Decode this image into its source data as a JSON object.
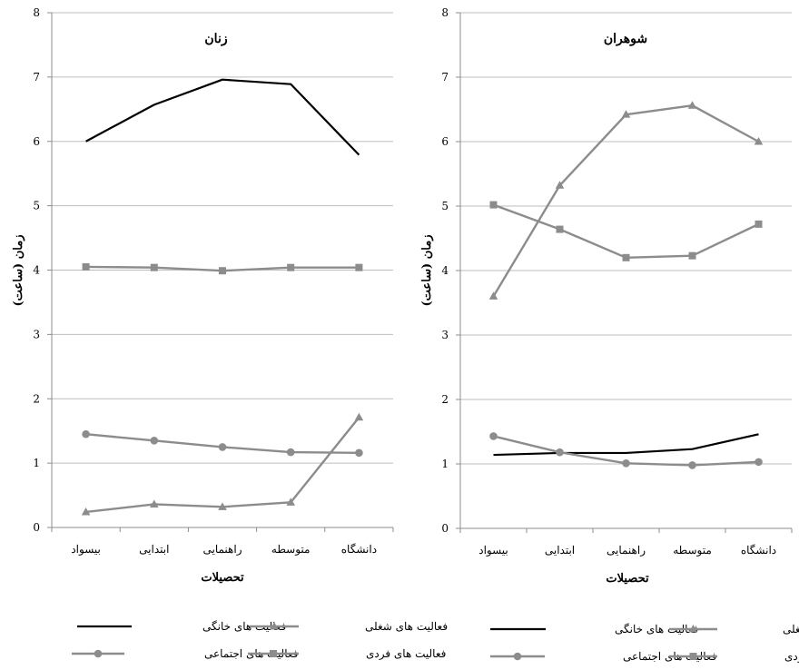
{
  "chart_data": [
    {
      "type": "line",
      "title": "زنان",
      "xlabel": "تحصیلات",
      "ylabel": "زمان (ساعت)",
      "categories": [
        "بیسواد",
        "ابتدایی",
        "راهنمایی",
        "متوسطه",
        "دانشگاه"
      ],
      "ylim": [
        0,
        8
      ],
      "yticks": [
        "0",
        "1",
        "2",
        "3",
        "4",
        "5",
        "6",
        "7",
        "8"
      ],
      "grid": true,
      "legend_position": "bottom",
      "series": [
        {
          "name": "فعالیت های خانگی",
          "values": [
            6.0,
            6.57,
            6.96,
            6.89,
            5.79
          ],
          "color": "#000000",
          "marker": "none"
        },
        {
          "name": "فعالیت های شغلی",
          "values": [
            0.24,
            0.36,
            0.32,
            0.39,
            1.71
          ],
          "color": "#8c8c8c",
          "marker": "triangle"
        },
        {
          "name": "فعالیت های اجتماعی",
          "values": [
            1.45,
            1.35,
            1.25,
            1.17,
            1.16
          ],
          "color": "#8c8c8c",
          "marker": "circle"
        },
        {
          "name": "فعالیت های فردی",
          "values": [
            4.05,
            4.04,
            3.99,
            4.04,
            4.04
          ],
          "color": "#8c8c8c",
          "marker": "square"
        }
      ]
    },
    {
      "type": "line",
      "title": "شوهران",
      "xlabel": "تحصیلات",
      "ylabel": "زمان (ساعت)",
      "categories": [
        "بیسواد",
        "ابتدایی",
        "راهنمایی",
        "متوسطه",
        "دانشگاه"
      ],
      "ylim": [
        0,
        8
      ],
      "yticks": [
        "0",
        "1",
        "2",
        "3",
        "4",
        "5",
        "6",
        "7",
        "8"
      ],
      "grid": true,
      "legend_position": "bottom",
      "series": [
        {
          "name": "فعالیت های خانگی",
          "values": [
            1.14,
            1.17,
            1.17,
            1.23,
            1.46
          ],
          "color": "#000000",
          "marker": "none"
        },
        {
          "name": "فعالیت های شغلی",
          "values": [
            3.6,
            5.32,
            6.42,
            6.56,
            6.0
          ],
          "color": "#8c8c8c",
          "marker": "triangle"
        },
        {
          "name": "فعالیت های اجتماعی",
          "values": [
            1.43,
            1.18,
            1.01,
            0.98,
            1.03
          ],
          "color": "#8c8c8c",
          "marker": "circle"
        },
        {
          "name": "فعالیت های فردی",
          "values": [
            5.02,
            4.64,
            4.2,
            4.23,
            4.72
          ],
          "color": "#8c8c8c",
          "marker": "square"
        }
      ]
    }
  ]
}
